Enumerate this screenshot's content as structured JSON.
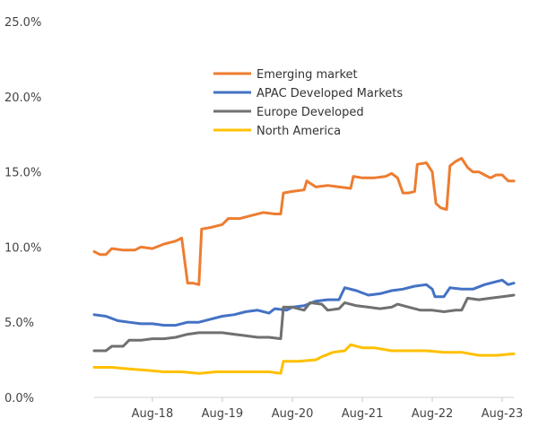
{
  "chart_data": {
    "type": "line",
    "title": "",
    "xlabel": "",
    "ylabel": "",
    "x_range": [
      "2017-10-01",
      "2023-10-01"
    ],
    "ylim": [
      0,
      25
    ],
    "y_ticks": [
      0,
      5,
      10,
      15,
      20,
      25
    ],
    "y_tick_labels": [
      "0.0%",
      "5.0%",
      "10.0%",
      "15.0%",
      "20.0%",
      "25.0%"
    ],
    "x_ticks": [
      "2018-08-01",
      "2019-08-01",
      "2020-08-01",
      "2021-08-01",
      "2022-08-01",
      "2023-08-01"
    ],
    "x_tick_labels": [
      "Aug-18",
      "Aug-19",
      "Aug-20",
      "Aug-21",
      "Aug-22",
      "Aug-23"
    ],
    "grid": false,
    "legend_position": "upper-center",
    "series": [
      {
        "name": "Emerging market",
        "color": "#ED7D31",
        "points": [
          [
            "2017-10-01",
            9.7
          ],
          [
            "2017-11-01",
            9.5
          ],
          [
            "2017-12-01",
            9.5
          ],
          [
            "2018-01-01",
            9.9
          ],
          [
            "2018-03-01",
            9.8
          ],
          [
            "2018-05-01",
            9.8
          ],
          [
            "2018-06-01",
            10.0
          ],
          [
            "2018-08-01",
            9.9
          ],
          [
            "2018-10-01",
            10.2
          ],
          [
            "2018-12-01",
            10.4
          ],
          [
            "2019-01-01",
            10.6
          ],
          [
            "2019-02-01",
            7.6
          ],
          [
            "2019-03-01",
            7.6
          ],
          [
            "2019-04-01",
            7.5
          ],
          [
            "2019-04-15",
            11.2
          ],
          [
            "2019-06-01",
            11.3
          ],
          [
            "2019-08-01",
            11.5
          ],
          [
            "2019-09-01",
            11.9
          ],
          [
            "2019-11-01",
            11.9
          ],
          [
            "2020-01-01",
            12.1
          ],
          [
            "2020-03-01",
            12.3
          ],
          [
            "2020-05-01",
            12.2
          ],
          [
            "2020-06-01",
            12.2
          ],
          [
            "2020-06-15",
            13.6
          ],
          [
            "2020-08-01",
            13.7
          ],
          [
            "2020-10-01",
            13.8
          ],
          [
            "2020-10-15",
            14.4
          ],
          [
            "2020-12-01",
            14.0
          ],
          [
            "2021-02-01",
            14.1
          ],
          [
            "2021-04-01",
            14.0
          ],
          [
            "2021-06-01",
            13.9
          ],
          [
            "2021-06-15",
            14.7
          ],
          [
            "2021-08-01",
            14.6
          ],
          [
            "2021-10-01",
            14.6
          ],
          [
            "2021-12-01",
            14.7
          ],
          [
            "2022-01-01",
            14.9
          ],
          [
            "2022-02-01",
            14.6
          ],
          [
            "2022-03-01",
            13.6
          ],
          [
            "2022-04-01",
            13.6
          ],
          [
            "2022-05-01",
            13.7
          ],
          [
            "2022-05-15",
            15.5
          ],
          [
            "2022-07-01",
            15.6
          ],
          [
            "2022-08-01",
            15.0
          ],
          [
            "2022-08-20",
            12.9
          ],
          [
            "2022-09-15",
            12.6
          ],
          [
            "2022-10-15",
            12.5
          ],
          [
            "2022-11-01",
            15.4
          ],
          [
            "2022-12-01",
            15.7
          ],
          [
            "2023-01-01",
            15.9
          ],
          [
            "2023-02-01",
            15.3
          ],
          [
            "2023-03-01",
            15.0
          ],
          [
            "2023-04-01",
            15.0
          ],
          [
            "2023-05-01",
            14.8
          ],
          [
            "2023-06-01",
            14.6
          ],
          [
            "2023-07-01",
            14.8
          ],
          [
            "2023-08-01",
            14.8
          ],
          [
            "2023-09-01",
            14.4
          ],
          [
            "2023-10-01",
            14.4
          ]
        ]
      },
      {
        "name": "APAC Developed Markets",
        "color": "#4472C4",
        "points": [
          [
            "2017-10-01",
            5.5
          ],
          [
            "2017-12-01",
            5.4
          ],
          [
            "2018-02-01",
            5.1
          ],
          [
            "2018-04-01",
            5.0
          ],
          [
            "2018-06-01",
            4.9
          ],
          [
            "2018-08-01",
            4.9
          ],
          [
            "2018-10-01",
            4.8
          ],
          [
            "2018-12-01",
            4.8
          ],
          [
            "2019-02-01",
            5.0
          ],
          [
            "2019-04-01",
            5.0
          ],
          [
            "2019-06-01",
            5.2
          ],
          [
            "2019-08-01",
            5.4
          ],
          [
            "2019-10-01",
            5.5
          ],
          [
            "2019-12-01",
            5.7
          ],
          [
            "2020-02-01",
            5.8
          ],
          [
            "2020-04-01",
            5.6
          ],
          [
            "2020-05-01",
            5.9
          ],
          [
            "2020-07-01",
            5.8
          ],
          [
            "2020-08-01",
            6.0
          ],
          [
            "2020-10-01",
            6.1
          ],
          [
            "2020-12-01",
            6.4
          ],
          [
            "2021-02-01",
            6.5
          ],
          [
            "2021-04-01",
            6.5
          ],
          [
            "2021-05-01",
            7.3
          ],
          [
            "2021-07-01",
            7.1
          ],
          [
            "2021-09-01",
            6.8
          ],
          [
            "2021-11-01",
            6.9
          ],
          [
            "2022-01-01",
            7.1
          ],
          [
            "2022-03-01",
            7.2
          ],
          [
            "2022-05-01",
            7.4
          ],
          [
            "2022-07-01",
            7.5
          ],
          [
            "2022-08-01",
            7.2
          ],
          [
            "2022-08-15",
            6.7
          ],
          [
            "2022-10-01",
            6.7
          ],
          [
            "2022-11-01",
            7.3
          ],
          [
            "2023-01-01",
            7.2
          ],
          [
            "2023-03-01",
            7.2
          ],
          [
            "2023-05-01",
            7.5
          ],
          [
            "2023-07-01",
            7.7
          ],
          [
            "2023-08-01",
            7.8
          ],
          [
            "2023-09-01",
            7.5
          ],
          [
            "2023-10-01",
            7.6
          ]
        ]
      },
      {
        "name": "Europe Developed",
        "color": "#707070",
        "points": [
          [
            "2017-10-01",
            3.1
          ],
          [
            "2017-12-01",
            3.1
          ],
          [
            "2018-01-01",
            3.4
          ],
          [
            "2018-03-01",
            3.4
          ],
          [
            "2018-04-01",
            3.8
          ],
          [
            "2018-06-01",
            3.8
          ],
          [
            "2018-08-01",
            3.9
          ],
          [
            "2018-10-01",
            3.9
          ],
          [
            "2018-12-01",
            4.0
          ],
          [
            "2019-02-01",
            4.2
          ],
          [
            "2019-04-01",
            4.3
          ],
          [
            "2019-06-01",
            4.3
          ],
          [
            "2019-08-01",
            4.3
          ],
          [
            "2019-10-01",
            4.2
          ],
          [
            "2019-12-01",
            4.1
          ],
          [
            "2020-02-01",
            4.0
          ],
          [
            "2020-04-01",
            4.0
          ],
          [
            "2020-06-01",
            3.9
          ],
          [
            "2020-06-15",
            6.0
          ],
          [
            "2020-08-01",
            6.0
          ],
          [
            "2020-10-01",
            5.8
          ],
          [
            "2020-11-01",
            6.3
          ],
          [
            "2021-01-01",
            6.2
          ],
          [
            "2021-02-01",
            5.8
          ],
          [
            "2021-04-01",
            5.9
          ],
          [
            "2021-05-01",
            6.3
          ],
          [
            "2021-07-01",
            6.1
          ],
          [
            "2021-09-01",
            6.0
          ],
          [
            "2021-11-01",
            5.9
          ],
          [
            "2022-01-01",
            6.0
          ],
          [
            "2022-02-01",
            6.2
          ],
          [
            "2022-04-01",
            6.0
          ],
          [
            "2022-06-01",
            5.8
          ],
          [
            "2022-08-01",
            5.8
          ],
          [
            "2022-10-01",
            5.7
          ],
          [
            "2022-12-01",
            5.8
          ],
          [
            "2023-01-01",
            5.8
          ],
          [
            "2023-02-01",
            6.6
          ],
          [
            "2023-04-01",
            6.5
          ],
          [
            "2023-06-01",
            6.6
          ],
          [
            "2023-08-01",
            6.7
          ],
          [
            "2023-10-01",
            6.8
          ]
        ]
      },
      {
        "name": "North America",
        "color": "#FFC000",
        "points": [
          [
            "2017-10-01",
            2.0
          ],
          [
            "2018-01-01",
            2.0
          ],
          [
            "2018-04-01",
            1.9
          ],
          [
            "2018-07-01",
            1.8
          ],
          [
            "2018-10-01",
            1.7
          ],
          [
            "2019-01-01",
            1.7
          ],
          [
            "2019-04-01",
            1.6
          ],
          [
            "2019-07-01",
            1.7
          ],
          [
            "2019-10-01",
            1.7
          ],
          [
            "2020-01-01",
            1.7
          ],
          [
            "2020-04-01",
            1.7
          ],
          [
            "2020-06-01",
            1.6
          ],
          [
            "2020-06-15",
            2.4
          ],
          [
            "2020-09-01",
            2.4
          ],
          [
            "2020-12-01",
            2.5
          ],
          [
            "2021-01-01",
            2.7
          ],
          [
            "2021-03-01",
            3.0
          ],
          [
            "2021-05-01",
            3.1
          ],
          [
            "2021-06-01",
            3.5
          ],
          [
            "2021-08-01",
            3.3
          ],
          [
            "2021-10-01",
            3.3
          ],
          [
            "2022-01-01",
            3.1
          ],
          [
            "2022-04-01",
            3.1
          ],
          [
            "2022-07-01",
            3.1
          ],
          [
            "2022-10-01",
            3.0
          ],
          [
            "2023-01-01",
            3.0
          ],
          [
            "2023-04-01",
            2.8
          ],
          [
            "2023-07-01",
            2.8
          ],
          [
            "2023-10-01",
            2.9
          ]
        ]
      }
    ]
  }
}
